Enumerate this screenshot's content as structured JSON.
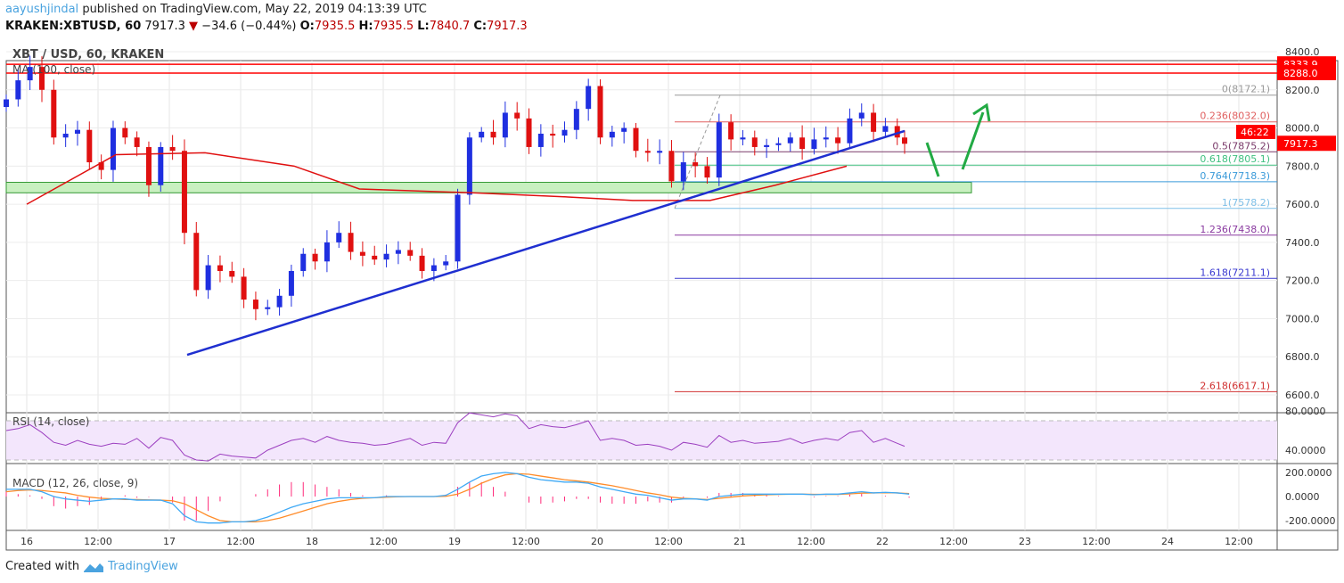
{
  "header": {
    "author": "aayushjindal",
    "published": "published on TradingView.com, May 22, 2019 04:13:39 UTC",
    "symbol": "KRAKEN:XBTUSD, 60",
    "last": "7917.3",
    "change": "−34.6 (−0.44%)",
    "o_label": "O:",
    "o": "7935.5",
    "h_label": "H:",
    "h": "7935.5",
    "l_label": "L:",
    "l": "7840.7",
    "c_label": "C:",
    "c": "7917.3"
  },
  "footer": {
    "created": "Created with",
    "brand": "TradingView"
  },
  "colors": {
    "up": "#1f2fe0",
    "down": "#e01010",
    "ma": "#e01010",
    "trend": "#1f2fd0",
    "zone": "#c8f0c0",
    "arrow": "#22aa44",
    "rsi": "#9c3fc0",
    "macd": "#3fa9f5",
    "signal": "#ff8c2a",
    "hist": "#ff2a7a"
  },
  "chart_data": {
    "type": "candlestick",
    "title": "XBT / USD, 60, KRAKEN",
    "ma_label": "MA (100, close)",
    "ylim": [
      6550,
      8450
    ],
    "y_ticks": [
      "8400.0",
      "8200.0",
      "8000.0",
      "7800.0",
      "7600.0",
      "7400.0",
      "7200.0",
      "7000.0",
      "6800.0",
      "6600.0"
    ],
    "x_ticks": [
      "16",
      "12:00",
      "17",
      "12:00",
      "18",
      "12:00",
      "19",
      "12:00",
      "20",
      "12:00",
      "21",
      "12:00",
      "22",
      "12:00",
      "23",
      "12:00",
      "24",
      "12:00"
    ],
    "closes_2h": [
      8150,
      8250,
      8320,
      8200,
      7950,
      7970,
      7990,
      7820,
      7780,
      8000,
      7950,
      7900,
      7700,
      7900,
      7880,
      7450,
      7150,
      7280,
      7250,
      7220,
      7100,
      7050,
      7060,
      7120,
      7250,
      7340,
      7300,
      7400,
      7450,
      7350,
      7330,
      7310,
      7340,
      7360,
      7330,
      7250,
      7280,
      7300,
      7650,
      7950,
      7980,
      7950,
      8080,
      8050,
      7900,
      7970,
      7960,
      7990,
      8100,
      8220,
      7950,
      7980,
      8000,
      7880,
      7870,
      7880,
      7720,
      7820,
      7800,
      7740,
      8030,
      7940,
      7950,
      7900,
      7910,
      7920,
      7950,
      7890,
      7940,
      7950,
      7920,
      8050,
      8080,
      7980,
      8010,
      7950,
      7917.3
    ],
    "ma100": [
      [
        0,
        7600
      ],
      [
        15,
        7860
      ],
      [
        30,
        7870
      ],
      [
        45,
        7800
      ],
      [
        56,
        7680
      ],
      [
        75,
        7660
      ],
      [
        90,
        7640
      ],
      [
        102,
        7620
      ],
      [
        115,
        7620
      ],
      [
        126,
        7700
      ],
      [
        138,
        7800
      ]
    ],
    "horizontal_lines": [
      {
        "label": "8333.9",
        "value": 8333.9
      },
      {
        "label": "8288.0",
        "value": 8288.0
      }
    ],
    "last_price_label": "7917.3",
    "countdown": "46:22",
    "support_zone": [
      7660,
      7715
    ],
    "trendline": [
      {
        "time": "17 03:00",
        "value": 6810
      },
      {
        "time": "22 04:00",
        "value": 7984
      }
    ],
    "fib": [
      {
        "label": "0(8172.1)",
        "value": 8172.1,
        "color": "#999999"
      },
      {
        "label": "0.236(8032.0)",
        "value": 8032.0,
        "color": "#e06060"
      },
      {
        "label": "0.5(7875.2)",
        "value": 7875.2,
        "color": "#7a3a6a"
      },
      {
        "label": "0.618(7805.1)",
        "value": 7805.1,
        "color": "#40c080"
      },
      {
        "label": "0.764(7718.3)",
        "value": 7718.3,
        "color": "#3a9ad9"
      },
      {
        "label": "1(7578.2)",
        "value": 7578.2,
        "color": "#7fc0e8"
      },
      {
        "label": "1.236(7438.0)",
        "value": 7438.0,
        "color": "#8a3aa0"
      },
      {
        "label": "1.618(7211.1)",
        "value": 7211.1,
        "color": "#3a3ad0"
      },
      {
        "label": "2.618(6617.1)",
        "value": 6617.1,
        "color": "#d03030"
      }
    ],
    "rsi": {
      "label": "RSI (14, close)",
      "ticks": [
        "80.0000",
        "40.0000"
      ],
      "band": [
        30,
        70
      ],
      "values": [
        60,
        62,
        66,
        58,
        48,
        45,
        50,
        46,
        44,
        47,
        46,
        52,
        42,
        53,
        50,
        35,
        30,
        29,
        36,
        34,
        33,
        32,
        40,
        45,
        50,
        52,
        48,
        54,
        50,
        48,
        47,
        45,
        46,
        49,
        52,
        45,
        48,
        47,
        68,
        78,
        76,
        74,
        77,
        75,
        62,
        66,
        64,
        63,
        66,
        70,
        50,
        52,
        50,
        45,
        46,
        44,
        40,
        48,
        46,
        43,
        55,
        48,
        50,
        47,
        48,
        49,
        52,
        47,
        50,
        52,
        50,
        58,
        60,
        48,
        52,
        47,
        44
      ]
    },
    "macd": {
      "label": "MACD (12, 26, close, 9)",
      "ticks": [
        "200.0000",
        "0.0000",
        "-200.0000"
      ],
      "macd": [
        60,
        60,
        60,
        40,
        0,
        -20,
        -30,
        -40,
        -30,
        -20,
        -20,
        -30,
        -30,
        -30,
        -60,
        -160,
        -210,
        -220,
        -220,
        -210,
        -210,
        -200,
        -170,
        -130,
        -90,
        -60,
        -40,
        -20,
        -10,
        -10,
        -10,
        -10,
        0,
        0,
        0,
        0,
        0,
        10,
        60,
        120,
        170,
        190,
        200,
        190,
        160,
        140,
        130,
        120,
        120,
        110,
        80,
        60,
        40,
        20,
        10,
        -10,
        -30,
        -20,
        -20,
        -30,
        0,
        10,
        20,
        20,
        20,
        20,
        20,
        20,
        15,
        20,
        20,
        30,
        40,
        30,
        35,
        30,
        20
      ],
      "signal": [
        40,
        50,
        55,
        50,
        40,
        30,
        10,
        -5,
        -15,
        -20,
        -25,
        -25,
        -28,
        -30,
        -35,
        -60,
        -110,
        -160,
        -200,
        -210,
        -210,
        -210,
        -200,
        -180,
        -150,
        -120,
        -90,
        -60,
        -40,
        -25,
        -15,
        -10,
        -5,
        -2,
        0,
        0,
        0,
        2,
        20,
        60,
        110,
        150,
        180,
        190,
        185,
        170,
        155,
        140,
        130,
        120,
        105,
        90,
        70,
        50,
        30,
        15,
        -5,
        -15,
        -20,
        -25,
        -15,
        -5,
        5,
        10,
        15,
        18,
        20,
        20,
        18,
        18,
        18,
        22,
        28,
        30,
        32,
        30,
        25
      ]
    }
  }
}
